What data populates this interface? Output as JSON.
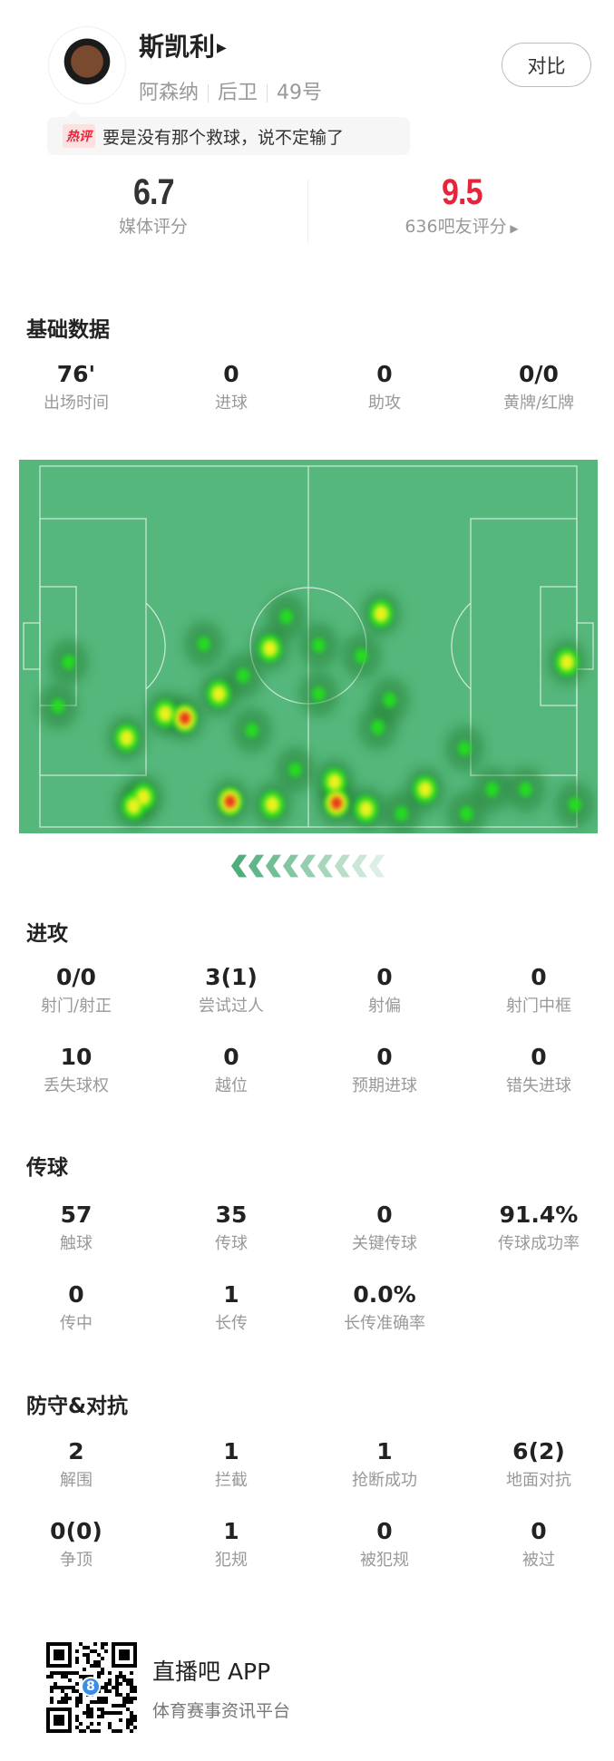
{
  "player": {
    "name": "斯凯利",
    "team": "阿森纳",
    "position": "后卫",
    "number": "49号",
    "compare_label": "对比"
  },
  "hot_comment": {
    "tag": "热评",
    "text": "要是没有那个救球，说不定输了"
  },
  "ratings": {
    "media": {
      "value": "6.7",
      "label": "媒体评分"
    },
    "fans": {
      "value": "9.5",
      "label": "636吧友评分",
      "color": "#e8243a"
    }
  },
  "basic": {
    "title": "基础数据",
    "stats": [
      {
        "value": "76'",
        "label": "出场时间"
      },
      {
        "value": "0",
        "label": "进球"
      },
      {
        "value": "0",
        "label": "助攻"
      },
      {
        "value": "0/0",
        "label": "黄牌/红牌"
      }
    ]
  },
  "heatmap": {
    "pitch_color": "#55b77b",
    "attack_direction": "left"
  },
  "attack": {
    "title": "进攻",
    "stats": [
      {
        "value": "0/0",
        "label": "射门/射正"
      },
      {
        "value": "3(1)",
        "label": "尝试过人"
      },
      {
        "value": "0",
        "label": "射偏"
      },
      {
        "value": "0",
        "label": "射门中框"
      },
      {
        "value": "10",
        "label": "丢失球权"
      },
      {
        "value": "0",
        "label": "越位"
      },
      {
        "value": "0",
        "label": "预期进球"
      },
      {
        "value": "0",
        "label": "错失进球"
      }
    ]
  },
  "passing": {
    "title": "传球",
    "stats": [
      {
        "value": "57",
        "label": "触球"
      },
      {
        "value": "35",
        "label": "传球"
      },
      {
        "value": "0",
        "label": "关键传球"
      },
      {
        "value": "91.4%",
        "label": "传球成功率"
      },
      {
        "value": "0",
        "label": "传中"
      },
      {
        "value": "1",
        "label": "长传"
      },
      {
        "value": "0.0%",
        "label": "长传准确率"
      }
    ]
  },
  "defense": {
    "title": "防守&对抗",
    "stats": [
      {
        "value": "2",
        "label": "解围"
      },
      {
        "value": "1",
        "label": "拦截"
      },
      {
        "value": "1",
        "label": "抢断成功"
      },
      {
        "value": "6(2)",
        "label": "地面对抗"
      },
      {
        "value": "0(0)",
        "label": "争顶"
      },
      {
        "value": "1",
        "label": "犯规"
      },
      {
        "value": "0",
        "label": "被犯规"
      },
      {
        "value": "0",
        "label": "被过"
      }
    ]
  },
  "footer": {
    "app_name": "直播吧 APP",
    "tagline": "体育赛事资讯平台",
    "qr_badge": "8"
  }
}
